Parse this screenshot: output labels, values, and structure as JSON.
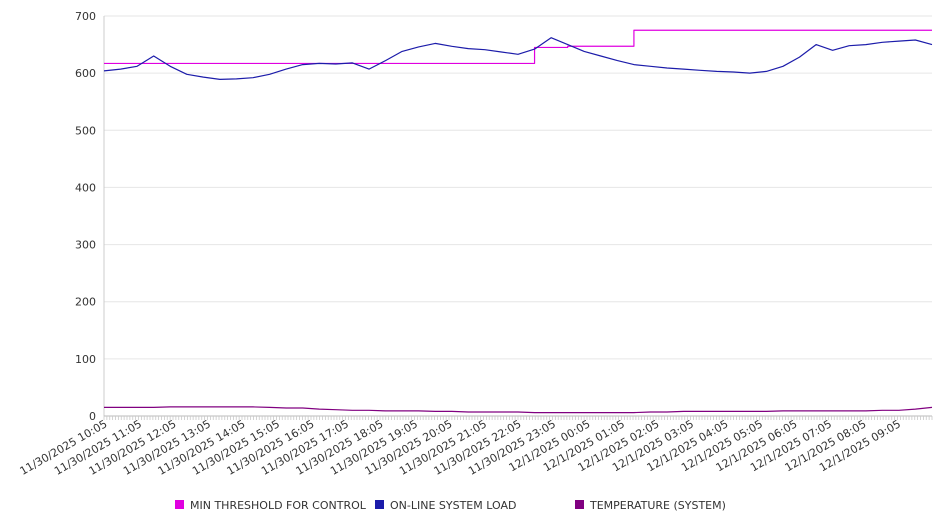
{
  "chart_data": {
    "type": "line",
    "title": "",
    "xlabel": "",
    "ylabel": "",
    "ylim": [
      0,
      700
    ],
    "yticks": [
      0,
      100,
      200,
      300,
      400,
      500,
      600,
      700
    ],
    "grid": true,
    "legend_position": "bottom",
    "x_tick_labels": [
      "11/30/2025 10:05",
      "11/30/2025 11:05",
      "11/30/2025 12:05",
      "11/30/2025 13:05",
      "11/30/2025 14:05",
      "11/30/2025 15:05",
      "11/30/2025 16:05",
      "11/30/2025 17:05",
      "11/30/2025 18:05",
      "11/30/2025 19:05",
      "11/30/2025 20:05",
      "11/30/2025 21:05",
      "11/30/2025 22:05",
      "11/30/2025 23:05",
      "12/1/2025 00:05",
      "12/1/2025 01:05",
      "12/1/2025 02:05",
      "12/1/2025 03:05",
      "12/1/2025 04:05",
      "12/1/2025 05:05",
      "12/1/2025 06:05",
      "12/1/2025 07:05",
      "12/1/2025 08:05",
      "12/1/2025 09:05"
    ],
    "x": [
      "10:05",
      "10:35",
      "11:05",
      "11:20",
      "11:35",
      "12:05",
      "12:35",
      "13:05",
      "13:35",
      "14:05",
      "14:35",
      "15:05",
      "15:35",
      "16:05",
      "16:35",
      "17:05",
      "17:20",
      "17:35",
      "18:05",
      "18:35",
      "19:05",
      "19:35",
      "20:05",
      "20:35",
      "21:05",
      "21:35",
      "22:05",
      "22:20",
      "22:35",
      "23:05",
      "23:35",
      "00:05",
      "00:35",
      "01:05",
      "01:35",
      "02:05",
      "02:35",
      "03:05",
      "03:35",
      "04:05",
      "04:35",
      "05:05",
      "05:35",
      "06:05",
      "06:35",
      "07:05",
      "07:35",
      "08:05",
      "08:35",
      "09:05",
      "09:35"
    ],
    "series": [
      {
        "name": "MIN THRESHOLD FOR CONTROL",
        "color": "#e000e0",
        "values": [
          617,
          617,
          617,
          617,
          617,
          617,
          617,
          617,
          617,
          617,
          617,
          617,
          617,
          617,
          617,
          617,
          617,
          617,
          617,
          617,
          617,
          617,
          617,
          617,
          617,
          617,
          645,
          645,
          647,
          647,
          647,
          647,
          675,
          675,
          675,
          675,
          675,
          675,
          675,
          675,
          675,
          675,
          675,
          675,
          675,
          675,
          675,
          675,
          675,
          675,
          675
        ]
      },
      {
        "name": "ON-LINE SYSTEM LOAD",
        "color": "#1c1caa",
        "values": [
          604,
          607,
          612,
          630,
          612,
          598,
          593,
          589,
          590,
          592,
          598,
          607,
          615,
          617,
          616,
          618,
          607,
          622,
          638,
          646,
          652,
          647,
          643,
          641,
          637,
          633,
          642,
          662,
          650,
          638,
          630,
          622,
          615,
          612,
          609,
          607,
          605,
          603,
          602,
          600,
          603,
          612,
          628,
          650,
          640,
          648,
          650,
          654,
          656,
          658,
          650
        ]
      },
      {
        "name": "TEMPERATURE (SYSTEM)",
        "color": "#800080",
        "values": [
          15,
          15,
          15,
          15,
          16,
          16,
          16,
          16,
          16,
          16,
          15,
          14,
          14,
          12,
          11,
          10,
          10,
          9,
          9,
          9,
          8,
          8,
          7,
          7,
          7,
          7,
          6,
          6,
          6,
          6,
          6,
          6,
          6,
          7,
          7,
          8,
          8,
          8,
          8,
          8,
          8,
          9,
          9,
          9,
          9,
          9,
          9,
          10,
          10,
          12,
          15
        ]
      }
    ]
  }
}
